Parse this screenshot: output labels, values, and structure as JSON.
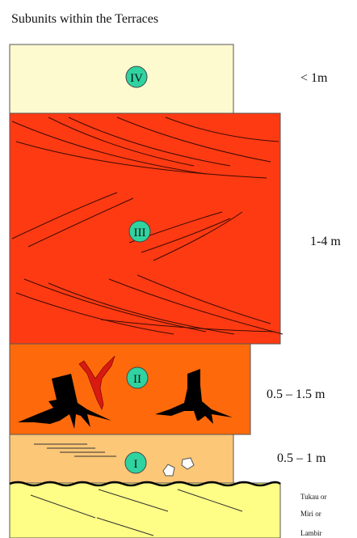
{
  "title": "Subunits within the Terraces",
  "units": [
    {
      "label": "IV",
      "thickness": "< 1m",
      "color": "#fdfad0"
    },
    {
      "label": "III",
      "thickness": "1-4 m",
      "color": "#fe3a13"
    },
    {
      "label": "II",
      "thickness": "0.5 – 1.5 m",
      "color": "#fe6a0b"
    },
    {
      "label": "I",
      "thickness": "0.5 – 1 m",
      "color": "#fcc777"
    }
  ],
  "base": {
    "color": "#fefe86",
    "label_lines": [
      "Tukau or",
      "Miri or",
      "Lambir"
    ]
  },
  "colors": {
    "badge_fill": "#2fd3a0",
    "stump": "#000000",
    "root_trace": "#d91a10",
    "outline": "#333333"
  },
  "icons": [
    "tree-stump-icon",
    "root-trace-icon",
    "pebble-icon",
    "lamination-lines-icon",
    "cross-bedding-lines-icon"
  ]
}
